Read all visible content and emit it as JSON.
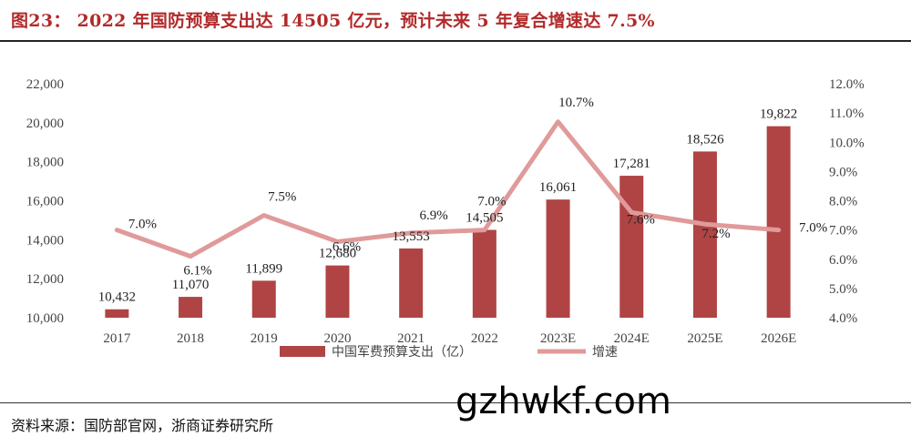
{
  "header": {
    "title": "图23： 2022 年国防预算支出达 14505 亿元，预计未来 5 年复合增速达 7.5%"
  },
  "footer": {
    "source": "资料来源：国防部官网，浙商证券研究所",
    "watermark": "gzhwkf.com"
  },
  "chart_data": {
    "type": "bar",
    "title": "2022 年国防预算支出达 14505 亿元，预计未来 5 年复合增速达 7.5%",
    "categories": [
      "2017",
      "2018",
      "2019",
      "2020",
      "2021",
      "2022",
      "2023E",
      "2024E",
      "2025E",
      "2026E"
    ],
    "series": [
      {
        "name": "中国军费预算支出（亿）",
        "type": "bar",
        "axis": "left",
        "color": "#b04444",
        "values": [
          10432,
          11070,
          11899,
          12680,
          13553,
          14505,
          16061,
          17281,
          18526,
          19822
        ],
        "labels": [
          "10,432",
          "11,070",
          "11,899",
          "12,680",
          "13,553",
          "14,505",
          "16,061",
          "17,281",
          "18,526",
          "19,822"
        ]
      },
      {
        "name": "增速",
        "type": "line",
        "axis": "right",
        "color": "#e09a9a",
        "values": [
          7.0,
          6.1,
          7.5,
          6.6,
          6.9,
          7.0,
          10.7,
          7.6,
          7.2,
          7.0
        ],
        "labels": [
          "7.0%",
          "6.1%",
          "7.5%",
          "6.6%",
          "6.9%",
          "7.0%",
          "10.7%",
          "7.6%",
          "7.2%",
          "7.0%"
        ]
      }
    ],
    "y_left": {
      "min": 10000,
      "max": 22000,
      "ticks": [
        10000,
        12000,
        14000,
        16000,
        18000,
        20000,
        22000
      ],
      "tick_labels": [
        "10,000",
        "12,000",
        "14,000",
        "16,000",
        "18,000",
        "20,000",
        "22,000"
      ]
    },
    "y_right": {
      "min": 4.0,
      "max": 12.0,
      "ticks": [
        4,
        5,
        6,
        7,
        8,
        9,
        10,
        11,
        12
      ],
      "tick_labels": [
        "4.0%",
        "5.0%",
        "6.0%",
        "7.0%",
        "8.0%",
        "9.0%",
        "10.0%",
        "11.0%",
        "12.0%"
      ]
    },
    "grid": false,
    "legend_position": "bottom"
  }
}
